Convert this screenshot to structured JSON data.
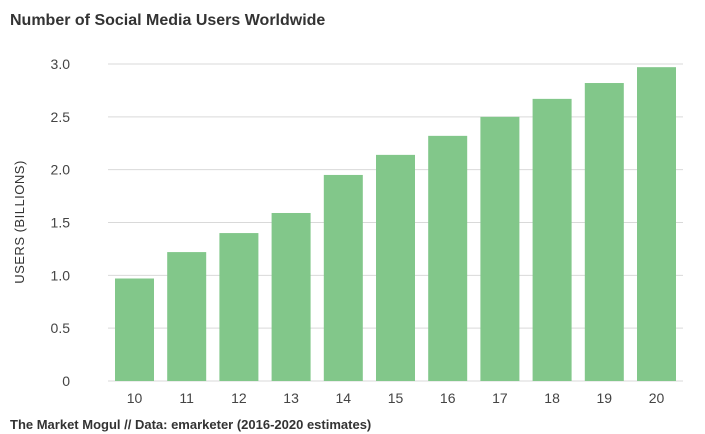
{
  "chart_data": {
    "type": "bar",
    "title": "Number of Social Media Users Worldwide",
    "xlabel": "",
    "ylabel": "USERS (BILLIONS)",
    "categories": [
      "10",
      "11",
      "12",
      "13",
      "14",
      "15",
      "16",
      "17",
      "18",
      "19",
      "20"
    ],
    "values": [
      0.97,
      1.22,
      1.4,
      1.59,
      1.95,
      2.14,
      2.32,
      2.5,
      2.67,
      2.82,
      2.97
    ],
    "ylim": [
      0,
      3.0
    ],
    "yticks": [
      "0",
      "0.5",
      "1.0",
      "1.5",
      "2.0",
      "2.5",
      "3.0"
    ],
    "grid": true,
    "source": "The Market Mogul // Data: emarketer (2016-2020 estimates)"
  },
  "colors": {
    "bar": "#82c78a",
    "grid": "#d9d9d9",
    "text": "#333333"
  }
}
